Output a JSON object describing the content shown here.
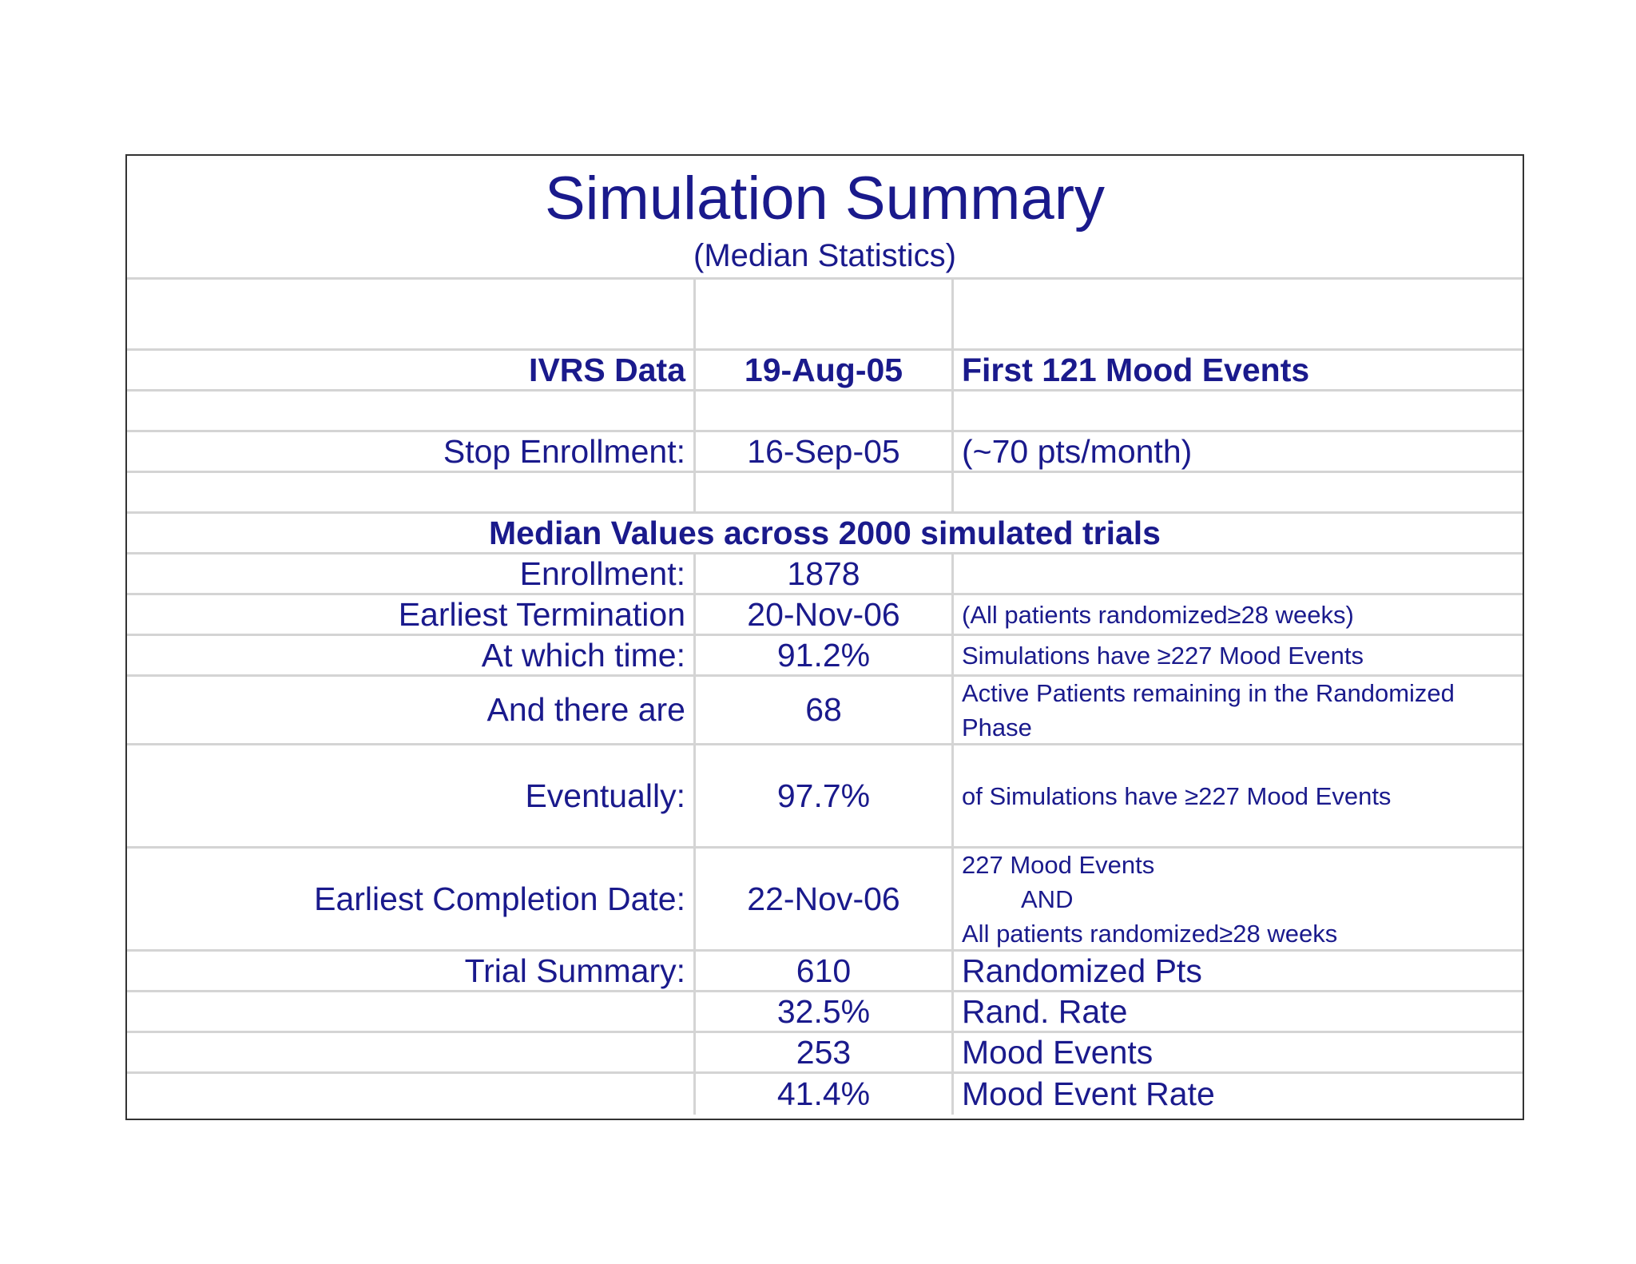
{
  "title": "Simulation Summary",
  "subtitle": "(Median Statistics)",
  "ivrs_row": {
    "label": "IVRS Data",
    "date": "19-Aug-05",
    "note": "First 121 Mood Events"
  },
  "stop_row": {
    "label": "Stop Enrollment:",
    "date": "16-Sep-05",
    "note": "(~70 pts/month)"
  },
  "median_heading": "Median Values across 2000 simulated trials",
  "rows": {
    "enrollment": {
      "label": "Enrollment:",
      "value": "1878",
      "note": ""
    },
    "earliest_termination": {
      "label": "Earliest Termination",
      "value": "20-Nov-06",
      "note": "(All patients randomized≥28 weeks)"
    },
    "at_which_time": {
      "label": "At which time:",
      "value": "91.2%",
      "note": "Simulations have ≥227 Mood Events"
    },
    "and_there_are": {
      "label": "And there are",
      "value": "68",
      "note": "Active Patients remaining in the Randomized Phase"
    },
    "eventually": {
      "label": "Eventually:",
      "value": "97.7%",
      "note": "of Simulations have ≥227 Mood Events"
    },
    "earliest_completion": {
      "label": "Earliest Completion Date:",
      "value": "22-Nov-06",
      "note_line1": "227 Mood Events",
      "note_line2": "AND",
      "note_line3": "All patients randomized≥28 weeks"
    },
    "trial_summary": {
      "label": "Trial Summary:",
      "value": "610",
      "note": "Randomized Pts"
    },
    "rand_rate": {
      "label": "",
      "value": "32.5%",
      "note": "Rand. Rate"
    },
    "mood_events": {
      "label": "",
      "value": "253",
      "note": "Mood Events"
    },
    "mood_event_rate": {
      "label": "",
      "value": "41.4%",
      "note": "Mood Event Rate"
    }
  }
}
